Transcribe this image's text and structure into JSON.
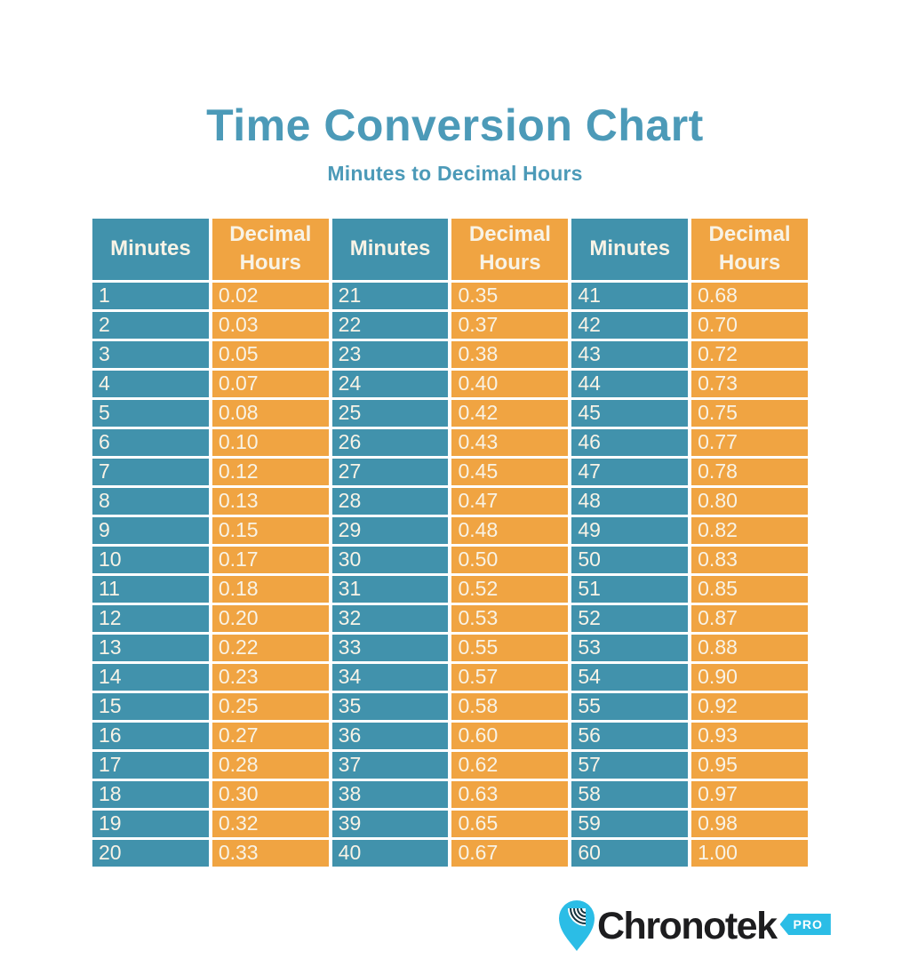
{
  "title": "Time Conversion Chart",
  "subtitle": "Minutes to Decimal Hours",
  "colors": {
    "table_teal": "#4192ac",
    "table_orange": "#f0a442",
    "heading_teal": "#4c9ab8",
    "cell_text_cream": "#f8f3e6",
    "logo_cyan": "#2bbde6",
    "logo_text_black": "#1d1d1f"
  },
  "table": {
    "column_headers": [
      "Minutes",
      "Decimal Hours",
      "Minutes",
      "Decimal Hours",
      "Minutes",
      "Decimal Hours"
    ],
    "rows": [
      [
        "1",
        "0.02",
        "21",
        "0.35",
        "41",
        "0.68"
      ],
      [
        "2",
        "0.03",
        "22",
        "0.37",
        "42",
        "0.70"
      ],
      [
        "3",
        "0.05",
        "23",
        "0.38",
        "43",
        "0.72"
      ],
      [
        "4",
        "0.07",
        "24",
        "0.40",
        "44",
        "0.73"
      ],
      [
        "5",
        "0.08",
        "25",
        "0.42",
        "45",
        "0.75"
      ],
      [
        "6",
        "0.10",
        "26",
        "0.43",
        "46",
        "0.77"
      ],
      [
        "7",
        "0.12",
        "27",
        "0.45",
        "47",
        "0.78"
      ],
      [
        "8",
        "0.13",
        "28",
        "0.47",
        "48",
        "0.80"
      ],
      [
        "9",
        "0.15",
        "29",
        "0.48",
        "49",
        "0.82"
      ],
      [
        "10",
        "0.17",
        "30",
        "0.50",
        "50",
        "0.83"
      ],
      [
        "11",
        "0.18",
        "31",
        "0.52",
        "51",
        "0.85"
      ],
      [
        "12",
        "0.20",
        "32",
        "0.53",
        "52",
        "0.87"
      ],
      [
        "13",
        "0.22",
        "33",
        "0.55",
        "53",
        "0.88"
      ],
      [
        "14",
        "0.23",
        "34",
        "0.57",
        "54",
        "0.90"
      ],
      [
        "15",
        "0.25",
        "35",
        "0.58",
        "55",
        "0.92"
      ],
      [
        "16",
        "0.27",
        "36",
        "0.60",
        "56",
        "0.93"
      ],
      [
        "17",
        "0.28",
        "37",
        "0.62",
        "57",
        "0.95"
      ],
      [
        "18",
        "0.30",
        "38",
        "0.63",
        "58",
        "0.97"
      ],
      [
        "19",
        "0.32",
        "39",
        "0.65",
        "59",
        "0.98"
      ],
      [
        "20",
        "0.33",
        "40",
        "0.67",
        "60",
        "1.00"
      ]
    ]
  },
  "chart_data": {
    "type": "table",
    "title": "Time Conversion Chart",
    "subtitle": "Minutes to Decimal Hours",
    "columns": [
      "Minutes",
      "Decimal Hours",
      "Minutes",
      "Decimal Hours",
      "Minutes",
      "Decimal Hours"
    ],
    "minutes": [
      1,
      2,
      3,
      4,
      5,
      6,
      7,
      8,
      9,
      10,
      11,
      12,
      13,
      14,
      15,
      16,
      17,
      18,
      19,
      20,
      21,
      22,
      23,
      24,
      25,
      26,
      27,
      28,
      29,
      30,
      31,
      32,
      33,
      34,
      35,
      36,
      37,
      38,
      39,
      40,
      41,
      42,
      43,
      44,
      45,
      46,
      47,
      48,
      49,
      50,
      51,
      52,
      53,
      54,
      55,
      56,
      57,
      58,
      59,
      60
    ],
    "decimal_hours": [
      0.02,
      0.03,
      0.05,
      0.07,
      0.08,
      0.1,
      0.12,
      0.13,
      0.15,
      0.17,
      0.18,
      0.2,
      0.22,
      0.23,
      0.25,
      0.27,
      0.28,
      0.3,
      0.32,
      0.33,
      0.35,
      0.37,
      0.38,
      0.4,
      0.42,
      0.43,
      0.45,
      0.47,
      0.48,
      0.5,
      0.52,
      0.53,
      0.55,
      0.57,
      0.58,
      0.6,
      0.62,
      0.63,
      0.65,
      0.67,
      0.68,
      0.7,
      0.72,
      0.73,
      0.75,
      0.77,
      0.78,
      0.8,
      0.82,
      0.83,
      0.85,
      0.87,
      0.88,
      0.9,
      0.92,
      0.93,
      0.95,
      0.97,
      0.98,
      1.0
    ]
  },
  "logo": {
    "brand": "Chronotek",
    "badge": "PRO"
  }
}
